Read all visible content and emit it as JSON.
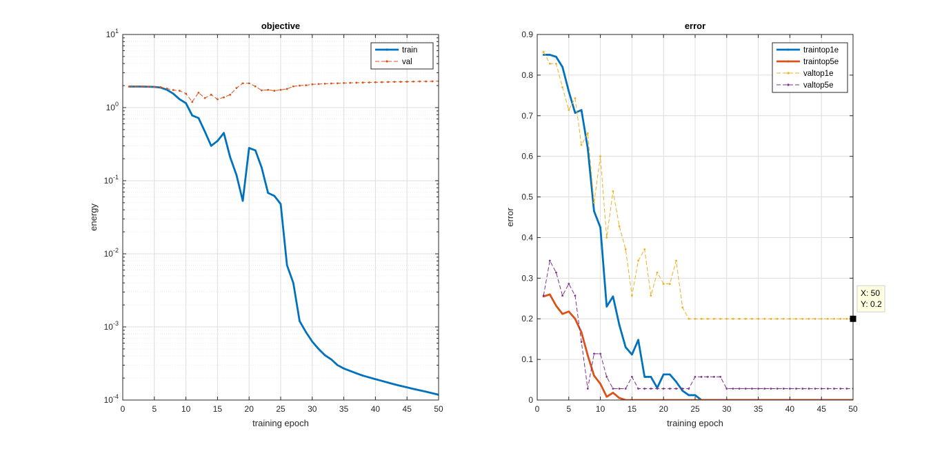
{
  "colors": {
    "blue": "#0072BD",
    "orange": "#D95319",
    "yellow": "#EDB120",
    "purple": "#7E2F8E",
    "axis": "#262626",
    "grid": "#dcdcdc",
    "tooltip_bg": "#ffffe1"
  },
  "chart_data": [
    {
      "type": "line",
      "title": "objective",
      "xlabel": "training epoch",
      "ylabel": "energy",
      "yscale": "log",
      "xlim": [
        0,
        50
      ],
      "ylim": [
        0.0001,
        10
      ],
      "xticks": [
        0,
        5,
        10,
        15,
        20,
        25,
        30,
        35,
        40,
        45,
        50
      ],
      "xtick_labels": [
        "0",
        "5",
        "10",
        "15",
        "20",
        "25",
        "30",
        "35",
        "40",
        "45",
        "50"
      ],
      "yticks": [
        0.0001,
        0.001,
        0.01,
        0.1,
        1,
        10
      ],
      "ytick_labels": [
        {
          "base": "10",
          "exp": "-4"
        },
        {
          "base": "10",
          "exp": "-3"
        },
        {
          "base": "10",
          "exp": "-2"
        },
        {
          "base": "10",
          "exp": "-1"
        },
        {
          "base": "10",
          "exp": "0"
        },
        {
          "base": "10",
          "exp": "1"
        }
      ],
      "grid": true,
      "minor_grid": true,
      "legend_position": "top-right",
      "x": [
        1,
        2,
        3,
        4,
        5,
        6,
        7,
        8,
        9,
        10,
        11,
        12,
        13,
        14,
        15,
        16,
        17,
        18,
        19,
        20,
        21,
        22,
        23,
        24,
        25,
        26,
        27,
        28,
        29,
        30,
        31,
        32,
        33,
        34,
        35,
        36,
        37,
        38,
        39,
        40,
        41,
        42,
        43,
        44,
        45,
        46,
        47,
        48,
        49,
        50
      ],
      "series": [
        {
          "name": "train",
          "color_key": "blue",
          "style": "solid",
          "width": "thick",
          "marker": "dot",
          "values": [
            1.94,
            1.94,
            1.94,
            1.93,
            1.92,
            1.88,
            1.75,
            1.55,
            1.3,
            1.15,
            0.78,
            0.72,
            0.47,
            0.3,
            0.35,
            0.45,
            0.21,
            0.12,
            0.053,
            0.28,
            0.26,
            0.15,
            0.068,
            0.062,
            0.048,
            0.007,
            0.004,
            0.0012,
            0.00085,
            0.00063,
            0.0005,
            0.00041,
            0.00036,
            0.0003,
            0.00027,
            0.00025,
            0.000232,
            0.000216,
            0.000204,
            0.000193,
            0.000183,
            0.000173,
            0.000164,
            0.000156,
            0.000149,
            0.000142,
            0.000136,
            0.00013,
            0.000124,
            0.000118
          ]
        },
        {
          "name": "val",
          "color_key": "orange",
          "style": "dashed",
          "width": "thin",
          "marker": "dot",
          "values": [
            1.94,
            1.94,
            1.94,
            1.93,
            1.92,
            1.9,
            1.82,
            1.74,
            1.7,
            1.55,
            1.2,
            1.6,
            1.35,
            1.5,
            1.3,
            1.38,
            1.5,
            1.85,
            2.15,
            2.15,
            1.95,
            1.72,
            1.75,
            1.7,
            1.75,
            1.8,
            1.95,
            2.0,
            2.02,
            2.08,
            2.1,
            2.12,
            2.14,
            2.15,
            2.17,
            2.18,
            2.19,
            2.2,
            2.21,
            2.22,
            2.23,
            2.24,
            2.25,
            2.25,
            2.26,
            2.27,
            2.28,
            2.28,
            2.29,
            2.3
          ]
        }
      ]
    },
    {
      "type": "line",
      "title": "error",
      "xlabel": "training epoch",
      "ylabel": "error",
      "yscale": "linear",
      "xlim": [
        0,
        50
      ],
      "ylim": [
        0,
        0.9
      ],
      "xticks": [
        0,
        5,
        10,
        15,
        20,
        25,
        30,
        35,
        40,
        45,
        50
      ],
      "xtick_labels": [
        "0",
        "5",
        "10",
        "15",
        "20",
        "25",
        "30",
        "35",
        "40",
        "45",
        "50"
      ],
      "yticks": [
        0,
        0.1,
        0.2,
        0.3,
        0.4,
        0.5,
        0.6,
        0.7,
        0.8,
        0.9
      ],
      "ytick_labels": [
        "0",
        "0.1",
        "0.2",
        "0.3",
        "0.4",
        "0.5",
        "0.6",
        "0.7",
        "0.8",
        "0.9"
      ],
      "grid": true,
      "minor_grid": false,
      "legend_position": "top-right",
      "x": [
        1,
        2,
        3,
        4,
        5,
        6,
        7,
        8,
        9,
        10,
        11,
        12,
        13,
        14,
        15,
        16,
        17,
        18,
        19,
        20,
        21,
        22,
        23,
        24,
        25,
        26,
        27,
        28,
        29,
        30,
        31,
        32,
        33,
        34,
        35,
        36,
        37,
        38,
        39,
        40,
        41,
        42,
        43,
        44,
        45,
        46,
        47,
        48,
        49,
        50
      ],
      "series": [
        {
          "name": "traintop1e",
          "color_key": "blue",
          "style": "solid",
          "width": "thick",
          "marker": "dot",
          "values": [
            0.85,
            0.85,
            0.845,
            0.82,
            0.76,
            0.707,
            0.714,
            0.62,
            0.465,
            0.425,
            0.23,
            0.255,
            0.185,
            0.13,
            0.112,
            0.148,
            0.057,
            0.057,
            0.03,
            0.063,
            0.063,
            0.045,
            0.023,
            0.012,
            0.012,
            0.0,
            0,
            0,
            0,
            0,
            0,
            0,
            0,
            0,
            0,
            0,
            0,
            0,
            0,
            0,
            0,
            0,
            0,
            0,
            0,
            0,
            0,
            0,
            0,
            0
          ]
        },
        {
          "name": "traintop5e",
          "color_key": "orange",
          "style": "solid",
          "width": "thick",
          "marker": "dot",
          "values": [
            0.255,
            0.26,
            0.232,
            0.212,
            0.218,
            0.2,
            0.167,
            0.11,
            0.06,
            0.04,
            0.008,
            0.018,
            0.005,
            0,
            0,
            0,
            0,
            0,
            0,
            0,
            0,
            0,
            0,
            0,
            0,
            0,
            0,
            0,
            0,
            0,
            0,
            0,
            0,
            0,
            0,
            0,
            0,
            0,
            0,
            0,
            0,
            0,
            0,
            0,
            0,
            0,
            0,
            0,
            0,
            0
          ]
        },
        {
          "name": "valtop1e",
          "color_key": "yellow",
          "style": "dashed",
          "width": "thin",
          "marker": "dot",
          "values": [
            0.857,
            0.828,
            0.828,
            0.77,
            0.714,
            0.743,
            0.628,
            0.657,
            0.486,
            0.6,
            0.4,
            0.514,
            0.428,
            0.371,
            0.257,
            0.343,
            0.371,
            0.257,
            0.314,
            0.286,
            0.286,
            0.343,
            0.228,
            0.2,
            0.2,
            0.2,
            0.2,
            0.2,
            0.2,
            0.2,
            0.2,
            0.2,
            0.2,
            0.2,
            0.2,
            0.2,
            0.2,
            0.2,
            0.2,
            0.2,
            0.2,
            0.2,
            0.2,
            0.2,
            0.2,
            0.2,
            0.2,
            0.2,
            0.2,
            0.2
          ]
        },
        {
          "name": "valtop5e",
          "color_key": "purple",
          "style": "dashed",
          "width": "thin",
          "marker": "dot",
          "values": [
            0.257,
            0.343,
            0.314,
            0.257,
            0.286,
            0.257,
            0.143,
            0.028,
            0.114,
            0.114,
            0.057,
            0.028,
            0.028,
            0.028,
            0.057,
            0.028,
            0.028,
            0.028,
            0.028,
            0.028,
            0.028,
            0.028,
            0.028,
            0.028,
            0.057,
            0.057,
            0.057,
            0.057,
            0.057,
            0.028,
            0.028,
            0.028,
            0.028,
            0.028,
            0.028,
            0.028,
            0.028,
            0.028,
            0.028,
            0.028,
            0.028,
            0.028,
            0.028,
            0.028,
            0.028,
            0.028,
            0.028,
            0.028,
            0.028,
            0.028
          ]
        }
      ],
      "datatip": {
        "x": 50,
        "y": 0.2,
        "x_text": "X: 50",
        "y_text": "Y: 0.2"
      }
    }
  ]
}
